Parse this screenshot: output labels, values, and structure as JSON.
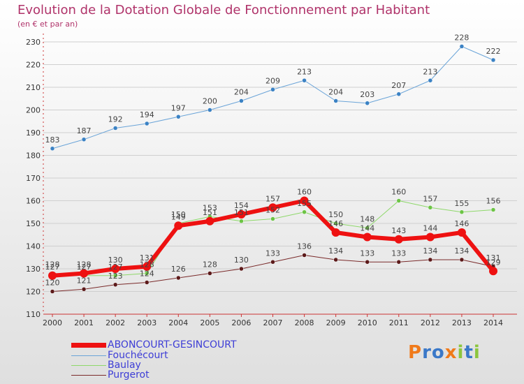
{
  "chart_data": {
    "type": "line",
    "title": "Evolution de la Dotation Globale de Fonctionnement par Habitant",
    "subtitle": "(en € et par an)",
    "x": [
      "2000",
      "2001",
      "2002",
      "2003",
      "2004",
      "2005",
      "2006",
      "2007",
      "2008",
      "2009",
      "2010",
      "2011",
      "2012",
      "2013",
      "2014"
    ],
    "ylim": [
      110,
      230
    ],
    "yticks": [
      110,
      120,
      130,
      140,
      150,
      160,
      170,
      180,
      190,
      200,
      210,
      220,
      230
    ],
    "grid": true,
    "legend_position": "bottom-left",
    "series": [
      {
        "name": "Fouchécourt",
        "color": "#6aa4d8",
        "marker": "#3b82c4",
        "width": 1,
        "values": [
          183,
          187,
          192,
          194,
          197,
          200,
          204,
          209,
          213,
          204,
          203,
          207,
          213,
          228,
          222
        ]
      },
      {
        "name": "Baulay",
        "color": "#8ed86a",
        "marker": "#6cc445",
        "width": 1,
        "values": [
          128,
          127,
          127,
          128,
          150,
          153,
          151,
          152,
          155,
          150,
          148,
          160,
          157,
          155,
          156
        ]
      },
      {
        "name": "Purgerot",
        "color": "#7a2a2a",
        "marker": "#5c1a1a",
        "width": 1,
        "values": [
          120,
          121,
          123,
          124,
          126,
          128,
          130,
          133,
          136,
          134,
          133,
          133,
          134,
          134,
          131
        ]
      },
      {
        "name": "ABONCOURT-GESINCOURT",
        "color": "#ee1111",
        "marker": "#ee1111",
        "width": 6,
        "values": [
          127,
          128,
          130,
          131,
          149,
          151,
          154,
          157,
          160,
          146,
          144,
          143,
          144,
          146,
          129
        ]
      }
    ],
    "data_labels": [
      {
        "series": 0,
        "labels": [
          "183",
          "187",
          "192",
          "194",
          "197",
          "200",
          "204",
          "209",
          "213",
          "204",
          "203",
          "207",
          "213",
          "228",
          "222"
        ]
      },
      {
        "series": 1,
        "labels": [
          "128",
          "127",
          "127",
          "128",
          "150",
          "153",
          "151",
          "152",
          "155",
          "150",
          "148",
          "160",
          "157",
          "155",
          "156"
        ]
      },
      {
        "series": 2,
        "labels": [
          "120",
          "121",
          "123",
          "124",
          "126",
          "128",
          "130",
          "133",
          "136",
          "134",
          "133",
          "133",
          "134",
          "134",
          "131"
        ]
      },
      {
        "series": 3,
        "labels": [
          "127",
          "128",
          "130",
          "131",
          "149",
          "151",
          "154",
          "157",
          "160",
          "146",
          "144",
          "143",
          "144",
          "146",
          "129"
        ]
      }
    ]
  },
  "legend": {
    "items": [
      {
        "label": "ABONCOURT-GESINCOURT",
        "color": "#ee1111",
        "thick": true
      },
      {
        "label": "Fouchécourt",
        "color": "#6aa4d8",
        "thick": false
      },
      {
        "label": "Baulay",
        "color": "#8ed86a",
        "thick": false
      },
      {
        "label": "Purgerot",
        "color": "#7a2a2a",
        "thick": false
      }
    ]
  },
  "logo": {
    "text": "Proxiti"
  }
}
